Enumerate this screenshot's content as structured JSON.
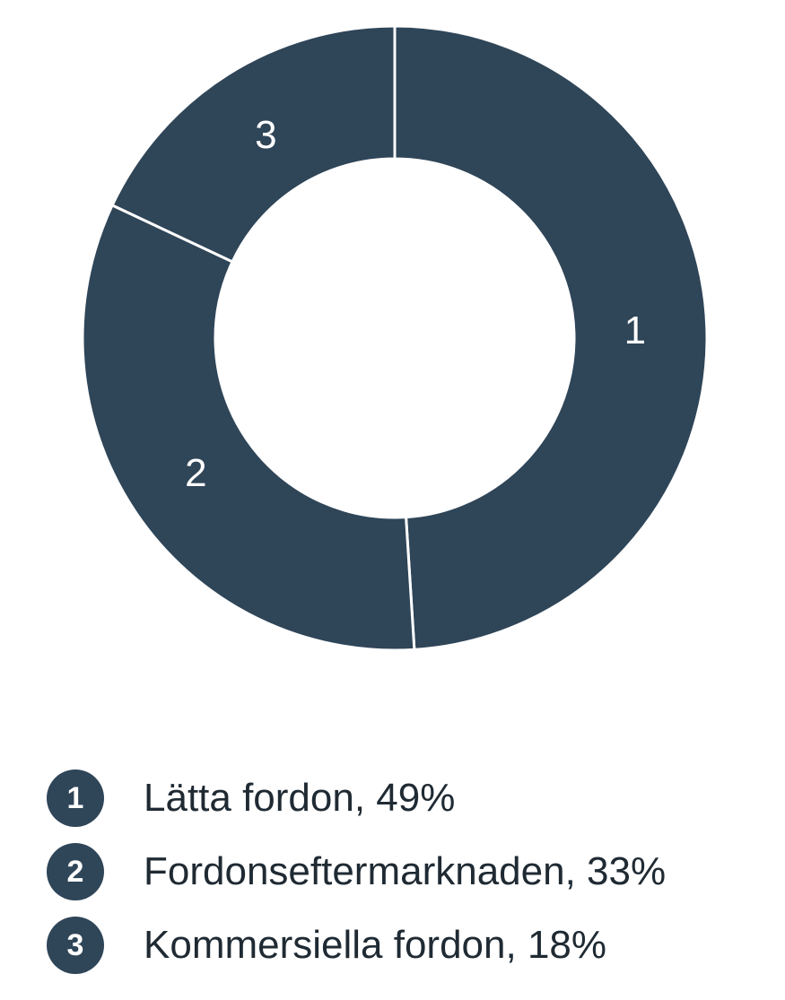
{
  "chart_data": {
    "type": "pie",
    "categories": [
      "Lätta fordon",
      "Fordonseftermarknaden",
      "Kommersiella fordon"
    ],
    "values": [
      49,
      33,
      18
    ],
    "unit": "%",
    "slice_labels": [
      "1",
      "2",
      "3"
    ],
    "legend_placement": "bottom-left",
    "colors": {
      "slice": "#2f4558",
      "separator": "#ffffff",
      "legend_marker": "#2f4558"
    }
  },
  "legend": {
    "items": [
      {
        "number": "1",
        "text": "Lätta fordon, 49%"
      },
      {
        "number": "2",
        "text": "Fordonseftermarknaden, 33%"
      },
      {
        "number": "3",
        "text": "Kommersiella fordon, 18%"
      }
    ]
  }
}
